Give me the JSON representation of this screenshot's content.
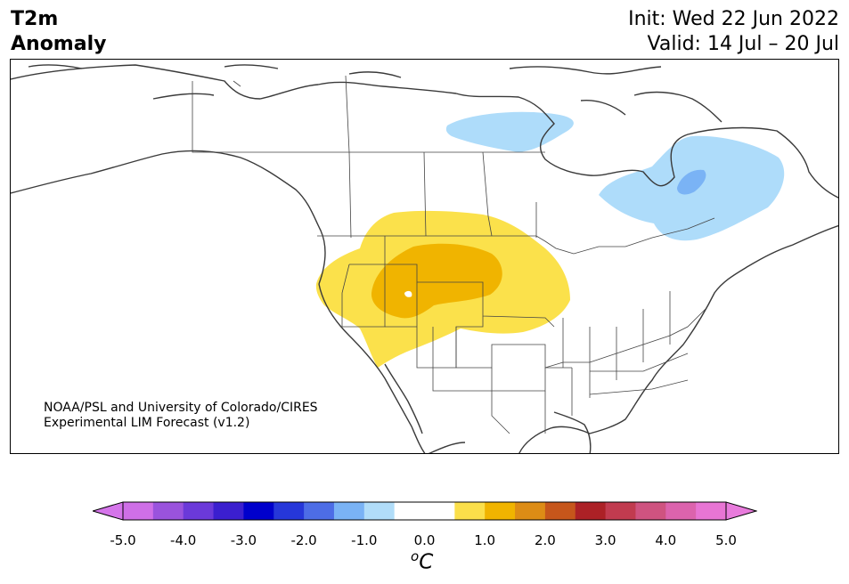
{
  "header": {
    "variable": "T2m",
    "anomaly": "Anomaly",
    "init": "Init: Wed 22 Jun 2022",
    "valid": "Valid: 14 Jul – 20 Jul"
  },
  "credit": {
    "line1": "NOAA/PSL and University of Colorado/CIRES",
    "line2": "Experimental LIM Forecast (v1.2)"
  },
  "colorbar": {
    "tick_labels": [
      "-5.0",
      "-4.0",
      "-3.0",
      "-2.0",
      "-1.0",
      "0.0",
      "1.0",
      "2.0",
      "3.0",
      "4.0",
      "5.0"
    ],
    "unit_base": "C",
    "unit_sup": "o",
    "colors": [
      "#cf6fe7",
      "#9a53dd",
      "#6b39d9",
      "#3b1fcf",
      "#0000cc",
      "#2637d9",
      "#4d6de6",
      "#7ab3f5",
      "#b1ddf9",
      "#ffffff",
      "#ffffff",
      "#fbdf4a",
      "#f0b400",
      "#dd8c15",
      "#c6561b",
      "#ac2126",
      "#c13b4f",
      "#cf5380",
      "#dc63ad",
      "#e875d4"
    ],
    "min_extend_color": "#d575ea",
    "max_extend_color": "#e87bdc"
  }
}
